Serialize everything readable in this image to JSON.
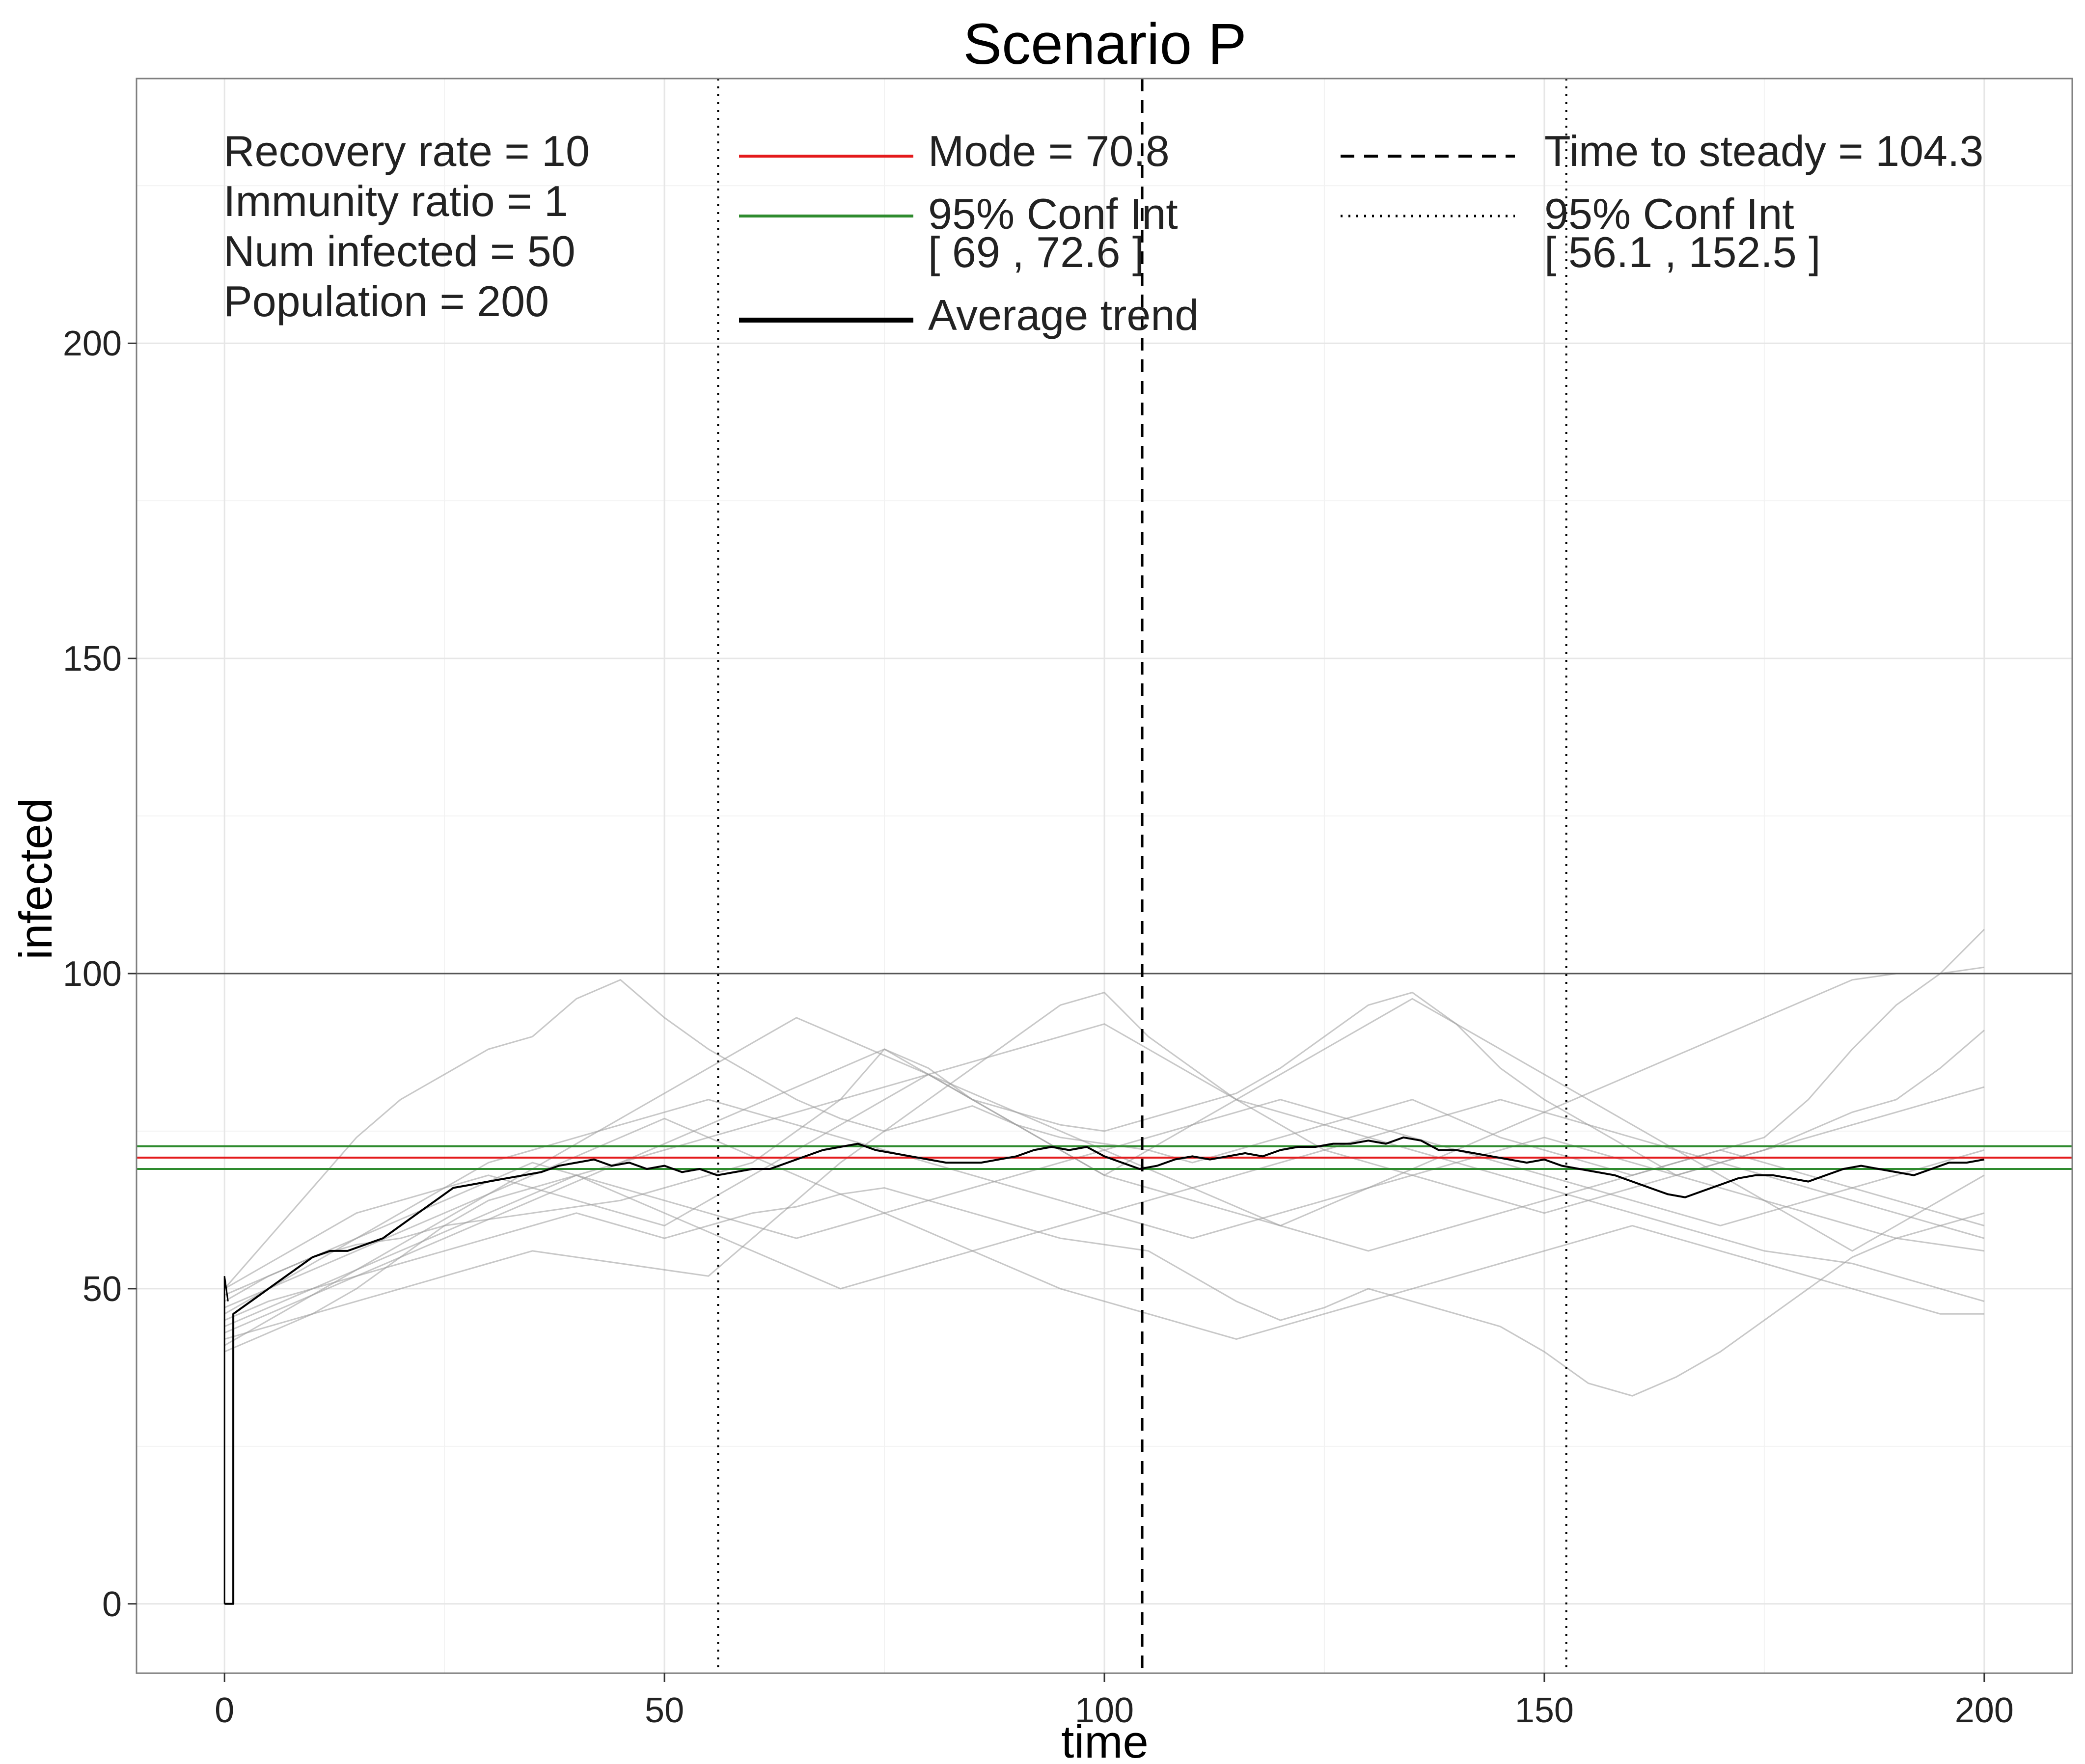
{
  "chart_data": {
    "type": "line",
    "title": "Scenario P",
    "xlabel": "time",
    "ylabel": "infected",
    "xlim": [
      -10,
      210
    ],
    "ylim": [
      -11,
      242
    ],
    "x_ticks": [
      0,
      50,
      100,
      150,
      200
    ],
    "y_ticks": [
      0,
      50,
      100,
      150,
      200
    ],
    "x_tick_labels": [
      "0",
      "50",
      "100",
      "150",
      "200"
    ],
    "y_tick_labels": [
      "0",
      "50",
      "100",
      "150",
      "200"
    ],
    "grid": true,
    "parameters_text": [
      "Recovery rate = 10",
      "Immunity ratio = 1",
      "Num infected = 50",
      "Population = 200"
    ],
    "legend": {
      "placement": "top",
      "entries": [
        {
          "label": "Mode = 70.8",
          "color": "#e41a1c",
          "style": "solid"
        },
        {
          "label": "95% Conf Int",
          "label2": "[ 69 , 72.6 ]",
          "color": "#2e8b2e",
          "style": "solid"
        },
        {
          "label": "Average trend",
          "color": "#000000",
          "style": "solid-thick"
        },
        {
          "label": "Time to steady = 104.3",
          "color": "#000000",
          "style": "dashed"
        },
        {
          "label": "95% Conf Int",
          "label2": "[ 56.1 , 152.5 ]",
          "color": "#000000",
          "style": "dotted"
        }
      ]
    },
    "reference_lines": {
      "mode": 70.8,
      "mode_ci": [
        69,
        72.6
      ],
      "population_half": 100,
      "time_to_steady": 104.3,
      "time_ci": [
        56.1,
        152.5
      ]
    },
    "colors": {
      "mode": "#e41a1c",
      "ci": "#2e8b2e",
      "trend": "#000000",
      "runs": "#9a9a9a",
      "hundred_line": "#555555"
    },
    "average_trend": {
      "x": [
        0,
        1,
        1,
        2,
        4,
        6,
        8,
        10,
        12,
        14,
        16,
        18,
        20,
        22,
        24,
        26,
        28,
        30,
        32,
        34,
        36,
        38,
        40,
        42,
        44,
        46,
        48,
        50,
        52,
        54,
        56,
        58,
        60,
        62,
        64,
        66,
        68,
        70,
        72,
        74,
        76,
        78,
        80,
        82,
        84,
        86,
        88,
        90,
        92,
        94,
        96,
        98,
        100,
        102,
        104,
        106,
        108,
        110,
        112,
        114,
        116,
        118,
        120,
        122,
        124,
        126,
        128,
        130,
        132,
        134,
        136,
        138,
        140,
        142,
        144,
        146,
        148,
        150,
        152,
        154,
        156,
        158,
        160,
        162,
        164,
        166,
        168,
        170,
        172,
        174,
        176,
        178,
        180,
        182,
        184,
        186,
        188,
        190,
        192,
        194,
        196,
        198,
        200
      ],
      "y": [
        0,
        0,
        46,
        47,
        49,
        51,
        53,
        55,
        56,
        56,
        57,
        58,
        60,
        62,
        64,
        66,
        66.5,
        67,
        67.5,
        68,
        68.5,
        69.5,
        70,
        70.5,
        69.5,
        70,
        69,
        69.5,
        68.5,
        69,
        68,
        68.5,
        69,
        69,
        70,
        71,
        72,
        72.5,
        73,
        72,
        71.5,
        71,
        70.5,
        70,
        70,
        70,
        70.5,
        71,
        72,
        72.5,
        72,
        72.5,
        71,
        70,
        69,
        69.5,
        70.5,
        71,
        70.5,
        71,
        71.5,
        71,
        72,
        72.5,
        72.5,
        73,
        73,
        73.5,
        73,
        74,
        73.5,
        72,
        72,
        71.5,
        71,
        70.5,
        70,
        70.5,
        69.5,
        69,
        68.5,
        68,
        67,
        66,
        65,
        64.5,
        65.5,
        66.5,
        67.5,
        68,
        68,
        67.5,
        67,
        68,
        69,
        69.5,
        69,
        68.5,
        68,
        69,
        70,
        70,
        70.5
      ]
    },
    "simulation_runs": [
      {
        "x": [
          0,
          5,
          10,
          15,
          20,
          25,
          30,
          35,
          40,
          45,
          50,
          55,
          60,
          65,
          70,
          75,
          80,
          85,
          90,
          95,
          100,
          105,
          110,
          115,
          120,
          125,
          130,
          135,
          140,
          145,
          150,
          155,
          160,
          165,
          170,
          175,
          180,
          185,
          190,
          195,
          200
        ],
        "y": [
          50,
          58,
          66,
          74,
          80,
          84,
          88,
          90,
          96,
          99,
          93,
          88,
          84,
          80,
          77,
          75,
          77,
          79,
          76,
          74,
          73,
          72,
          70,
          72,
          74,
          76,
          78,
          80,
          77,
          74,
          72,
          70,
          68,
          70,
          72,
          74,
          80,
          88,
          95,
          100,
          107
        ]
      },
      {
        "x": [
          0,
          5,
          10,
          15,
          20,
          25,
          30,
          35,
          40,
          45,
          50,
          55,
          60,
          65,
          70,
          75,
          80,
          85,
          90,
          95,
          100,
          105,
          110,
          115,
          120,
          125,
          130,
          135,
          140,
          145,
          150,
          155,
          160,
          165,
          170,
          175,
          180,
          185,
          190,
          195,
          200
        ],
        "y": [
          48,
          52,
          55,
          57,
          58,
          60,
          61,
          62,
          63,
          64,
          66,
          68,
          70,
          75,
          80,
          88,
          85,
          80,
          78,
          76,
          75,
          77,
          79,
          81,
          85,
          90,
          95,
          97,
          92,
          85,
          80,
          76,
          72,
          68,
          70,
          72,
          75,
          78,
          80,
          85,
          91
        ]
      },
      {
        "x": [
          0,
          5,
          10,
          15,
          20,
          25,
          30,
          35,
          40,
          45,
          50,
          55,
          60,
          65,
          70,
          75,
          80,
          85,
          90,
          95,
          100,
          105,
          110,
          115,
          120,
          125,
          130,
          135,
          140,
          145,
          150,
          155,
          160,
          165,
          170,
          175,
          180,
          185,
          190,
          195,
          200
        ],
        "y": [
          45,
          48,
          50,
          52,
          54,
          56,
          58,
          60,
          62,
          60,
          58,
          60,
          62,
          63,
          65,
          66,
          64,
          62,
          60,
          58,
          57,
          56,
          52,
          48,
          45,
          47,
          50,
          48,
          46,
          44,
          40,
          35,
          33,
          36,
          40,
          45,
          50,
          55,
          58,
          60,
          62
        ]
      },
      {
        "x": [
          0,
          5,
          10,
          15,
          20,
          25,
          30,
          35,
          40,
          45,
          50,
          55,
          60,
          65,
          70,
          75,
          80,
          85,
          90,
          95,
          100,
          105,
          110,
          115,
          120,
          125,
          130,
          135,
          140,
          145,
          150,
          155,
          160,
          165,
          170,
          175,
          180,
          185,
          190,
          195,
          200
        ],
        "y": [
          42,
          44,
          46,
          48,
          50,
          52,
          54,
          56,
          55,
          54,
          53,
          52,
          58,
          64,
          70,
          75,
          80,
          85,
          90,
          95,
          97,
          90,
          85,
          80,
          78,
          76,
          74,
          72,
          70,
          68,
          66,
          64,
          62,
          60,
          58,
          56,
          55,
          54,
          52,
          50,
          48
        ]
      },
      {
        "x": [
          0,
          5,
          10,
          15,
          20,
          25,
          30,
          35,
          40,
          45,
          50,
          55,
          60,
          65,
          70,
          75,
          80,
          85,
          90,
          95,
          100,
          105,
          110,
          115,
          120,
          125,
          130,
          135,
          140,
          145,
          150,
          155,
          160,
          165,
          170,
          175,
          180,
          185,
          190,
          195,
          200
        ],
        "y": [
          40,
          43,
          46,
          50,
          55,
          60,
          64,
          66,
          68,
          70,
          72,
          74,
          76,
          78,
          80,
          82,
          84,
          86,
          88,
          90,
          92,
          88,
          84,
          80,
          76,
          72,
          70,
          68,
          66,
          64,
          62,
          64,
          66,
          68,
          70,
          72,
          74,
          76,
          78,
          80,
          82
        ]
      },
      {
        "x": [
          0,
          5,
          10,
          15,
          20,
          25,
          30,
          35,
          40,
          45,
          50,
          55,
          60,
          65,
          70,
          75,
          80,
          85,
          90,
          95,
          100,
          105,
          110,
          115,
          120,
          125,
          130,
          135,
          140,
          145,
          150,
          155,
          160,
          165,
          170,
          175,
          180,
          185,
          190,
          195,
          200
        ],
        "y": [
          46,
          50,
          54,
          58,
          62,
          66,
          70,
          72,
          74,
          76,
          78,
          80,
          78,
          76,
          74,
          72,
          70,
          68,
          66,
          64,
          62,
          60,
          58,
          60,
          62,
          64,
          66,
          68,
          70,
          72,
          74,
          72,
          70,
          68,
          66,
          64,
          62,
          60,
          58,
          57,
          56
        ]
      },
      {
        "x": [
          0,
          5,
          10,
          15,
          20,
          25,
          30,
          35,
          40,
          45,
          50,
          55,
          60,
          65,
          70,
          75,
          80,
          85,
          90,
          95,
          100,
          105,
          110,
          115,
          120,
          125,
          130,
          135,
          140,
          145,
          150,
          155,
          160,
          165,
          170,
          175,
          180,
          185,
          190,
          195,
          200
        ],
        "y": [
          44,
          47,
          50,
          53,
          56,
          59,
          62,
          65,
          68,
          65,
          62,
          59,
          56,
          53,
          50,
          52,
          54,
          56,
          58,
          60,
          62,
          64,
          66,
          68,
          70,
          72,
          74,
          76,
          78,
          80,
          78,
          76,
          74,
          72,
          70,
          68,
          66,
          64,
          62,
          60,
          58
        ]
      },
      {
        "x": [
          0,
          5,
          10,
          15,
          20,
          25,
          30,
          35,
          40,
          45,
          50,
          55,
          60,
          65,
          70,
          75,
          80,
          85,
          90,
          95,
          100,
          105,
          110,
          115,
          120,
          125,
          130,
          135,
          140,
          145,
          150,
          155,
          160,
          165,
          170,
          175,
          180,
          185,
          190,
          195,
          200
        ],
        "y": [
          50,
          54,
          58,
          62,
          64,
          66,
          68,
          66,
          64,
          62,
          60,
          64,
          68,
          72,
          76,
          80,
          84,
          80,
          76,
          72,
          68,
          66,
          64,
          62,
          60,
          58,
          56,
          58,
          60,
          62,
          64,
          66,
          68,
          70,
          72,
          70,
          68,
          66,
          64,
          62,
          60
        ]
      },
      {
        "x": [
          0,
          5,
          10,
          15,
          20,
          25,
          30,
          35,
          40,
          45,
          50,
          55,
          60,
          65,
          70,
          75,
          80,
          85,
          90,
          95,
          100,
          105,
          110,
          115,
          120,
          125,
          130,
          135,
          140,
          145,
          150,
          155,
          160,
          165,
          170,
          175,
          180,
          185,
          190,
          195,
          200
        ],
        "y": [
          43,
          46,
          49,
          52,
          55,
          58,
          61,
          64,
          67,
          70,
          73,
          76,
          79,
          82,
          85,
          88,
          84,
          80,
          76,
          72,
          68,
          72,
          76,
          80,
          84,
          88,
          92,
          96,
          92,
          88,
          84,
          80,
          76,
          72,
          68,
          64,
          60,
          56,
          60,
          64,
          68
        ]
      },
      {
        "x": [
          0,
          5,
          10,
          15,
          20,
          25,
          30,
          35,
          40,
          45,
          50,
          55,
          60,
          65,
          70,
          75,
          80,
          85,
          90,
          95,
          100,
          105,
          110,
          115,
          120,
          125,
          130,
          135,
          140,
          145,
          150,
          155,
          160,
          165,
          170,
          175,
          180,
          185,
          190,
          195,
          200
        ],
        "y": [
          47,
          50,
          53,
          56,
          59,
          62,
          65,
          68,
          71,
          74,
          77,
          74,
          71,
          68,
          65,
          62,
          59,
          56,
          53,
          50,
          48,
          46,
          44,
          42,
          44,
          46,
          48,
          50,
          52,
          54,
          56,
          58,
          60,
          58,
          56,
          54,
          52,
          50,
          48,
          46,
          46
        ]
      },
      {
        "x": [
          0,
          5,
          10,
          15,
          20,
          25,
          30,
          35,
          40,
          45,
          50,
          55,
          60,
          65,
          70,
          75,
          80,
          85,
          90,
          95,
          100,
          105,
          110,
          115,
          120,
          125,
          130,
          135,
          140,
          145,
          150,
          155,
          160,
          165,
          170,
          175,
          180,
          185,
          190,
          195,
          200
        ],
        "y": [
          41,
          45,
          49,
          53,
          57,
          61,
          65,
          69,
          73,
          77,
          81,
          85,
          89,
          93,
          90,
          87,
          84,
          81,
          78,
          75,
          72,
          69,
          66,
          63,
          60,
          63,
          66,
          69,
          72,
          75,
          78,
          81,
          84,
          87,
          90,
          93,
          96,
          99,
          100,
          100,
          101
        ]
      },
      {
        "x": [
          0,
          5,
          10,
          15,
          20,
          25,
          30,
          35,
          40,
          45,
          50,
          55,
          60,
          65,
          70,
          75,
          80,
          85,
          90,
          95,
          100,
          105,
          110,
          115,
          120,
          125,
          130,
          135,
          140,
          145,
          150,
          155,
          160,
          165,
          170,
          175,
          180,
          185,
          190,
          195,
          200
        ],
        "y": [
          49,
          52,
          55,
          58,
          61,
          64,
          67,
          70,
          68,
          66,
          64,
          62,
          60,
          58,
          60,
          62,
          64,
          66,
          68,
          70,
          72,
          74,
          76,
          78,
          80,
          78,
          76,
          74,
          72,
          70,
          68,
          66,
          64,
          62,
          60,
          62,
          64,
          66,
          68,
          70,
          72
        ]
      }
    ]
  }
}
